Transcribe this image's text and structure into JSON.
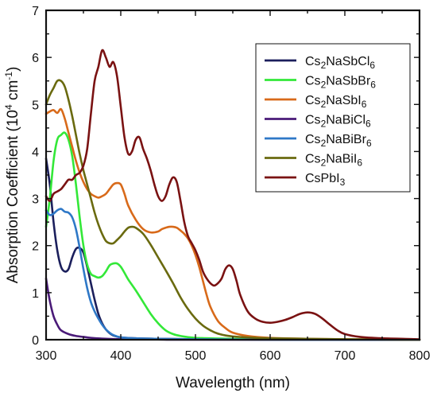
{
  "chart_data": {
    "type": "line",
    "xlabel": "Wavelength (nm)",
    "ylabel_main": "Absorption Coefficient (10",
    "ylabel_sup1": "4",
    "ylabel_mid": " cm",
    "ylabel_sup2": "-1",
    "ylabel_end": ")",
    "xlim": [
      300,
      800
    ],
    "ylim": [
      0,
      7
    ],
    "xticks": [
      "300",
      "400",
      "500",
      "600",
      "700",
      "800"
    ],
    "yticks": [
      "0",
      "1",
      "2",
      "3",
      "4",
      "5",
      "6",
      "7"
    ],
    "grid": false,
    "legend_position": "top-right",
    "series": [
      {
        "name": "Cs2NaSbCl6",
        "label_parts": [
          [
            "Cs",
            ""
          ],
          [
            "2",
            "sub"
          ],
          [
            "NaSbCl",
            ""
          ],
          [
            "6",
            "sub"
          ]
        ],
        "color": "#1b1f5c",
        "points": [
          [
            300,
            3.85
          ],
          [
            305,
            3.3
          ],
          [
            310,
            2.5
          ],
          [
            315,
            1.9
          ],
          [
            320,
            1.55
          ],
          [
            325,
            1.45
          ],
          [
            330,
            1.5
          ],
          [
            335,
            1.75
          ],
          [
            340,
            1.93
          ],
          [
            345,
            1.95
          ],
          [
            350,
            1.85
          ],
          [
            355,
            1.55
          ],
          [
            360,
            1.2
          ],
          [
            365,
            0.85
          ],
          [
            370,
            0.55
          ],
          [
            375,
            0.35
          ],
          [
            380,
            0.22
          ],
          [
            385,
            0.14
          ],
          [
            390,
            0.09
          ],
          [
            400,
            0.05
          ],
          [
            420,
            0.03
          ],
          [
            450,
            0.02
          ],
          [
            500,
            0.01
          ],
          [
            600,
            0.01
          ],
          [
            700,
            0.0
          ],
          [
            800,
            0.0
          ]
        ]
      },
      {
        "name": "Cs2NaSbBr6",
        "label_parts": [
          [
            "Cs",
            ""
          ],
          [
            "2",
            "sub"
          ],
          [
            "NaSbBr",
            ""
          ],
          [
            "6",
            "sub"
          ]
        ],
        "color": "#33e838",
        "points": [
          [
            300,
            2.4
          ],
          [
            305,
            3.0
          ],
          [
            310,
            3.8
          ],
          [
            315,
            4.25
          ],
          [
            320,
            4.35
          ],
          [
            325,
            4.4
          ],
          [
            330,
            4.25
          ],
          [
            335,
            3.9
          ],
          [
            340,
            3.3
          ],
          [
            345,
            2.6
          ],
          [
            350,
            2.0
          ],
          [
            355,
            1.6
          ],
          [
            360,
            1.4
          ],
          [
            365,
            1.35
          ],
          [
            370,
            1.32
          ],
          [
            375,
            1.35
          ],
          [
            380,
            1.45
          ],
          [
            385,
            1.58
          ],
          [
            390,
            1.62
          ],
          [
            395,
            1.62
          ],
          [
            400,
            1.55
          ],
          [
            405,
            1.42
          ],
          [
            410,
            1.28
          ],
          [
            420,
            1.05
          ],
          [
            430,
            0.8
          ],
          [
            440,
            0.55
          ],
          [
            450,
            0.35
          ],
          [
            460,
            0.2
          ],
          [
            470,
            0.12
          ],
          [
            480,
            0.08
          ],
          [
            500,
            0.04
          ],
          [
            550,
            0.02
          ],
          [
            600,
            0.01
          ],
          [
            800,
            0.0
          ]
        ]
      },
      {
        "name": "Cs2NaSbI6",
        "label_parts": [
          [
            "Cs",
            ""
          ],
          [
            "2",
            "sub"
          ],
          [
            "NaSbI",
            ""
          ],
          [
            "6",
            "sub"
          ]
        ],
        "color": "#d86a1a",
        "points": [
          [
            300,
            4.8
          ],
          [
            305,
            4.85
          ],
          [
            310,
            4.88
          ],
          [
            315,
            4.82
          ],
          [
            320,
            4.9
          ],
          [
            325,
            4.7
          ],
          [
            330,
            4.4
          ],
          [
            335,
            4.1
          ],
          [
            340,
            3.8
          ],
          [
            345,
            3.55
          ],
          [
            350,
            3.35
          ],
          [
            355,
            3.2
          ],
          [
            360,
            3.1
          ],
          [
            365,
            3.05
          ],
          [
            370,
            3.02
          ],
          [
            375,
            3.05
          ],
          [
            380,
            3.1
          ],
          [
            385,
            3.2
          ],
          [
            390,
            3.3
          ],
          [
            395,
            3.33
          ],
          [
            400,
            3.3
          ],
          [
            405,
            3.1
          ],
          [
            410,
            2.85
          ],
          [
            420,
            2.55
          ],
          [
            430,
            2.35
          ],
          [
            440,
            2.28
          ],
          [
            450,
            2.3
          ],
          [
            455,
            2.35
          ],
          [
            460,
            2.38
          ],
          [
            465,
            2.4
          ],
          [
            470,
            2.4
          ],
          [
            475,
            2.38
          ],
          [
            480,
            2.32
          ],
          [
            485,
            2.25
          ],
          [
            490,
            2.15
          ],
          [
            495,
            2.0
          ],
          [
            500,
            1.8
          ],
          [
            505,
            1.55
          ],
          [
            510,
            1.25
          ],
          [
            515,
            0.95
          ],
          [
            520,
            0.7
          ],
          [
            530,
            0.4
          ],
          [
            540,
            0.25
          ],
          [
            550,
            0.15
          ],
          [
            570,
            0.08
          ],
          [
            600,
            0.04
          ],
          [
            650,
            0.02
          ],
          [
            700,
            0.01
          ],
          [
            800,
            0.0
          ]
        ]
      },
      {
        "name": "Cs2NaBiCl6",
        "label_parts": [
          [
            "Cs",
            ""
          ],
          [
            "2",
            "sub"
          ],
          [
            "NaBiCl",
            ""
          ],
          [
            "6",
            "sub"
          ]
        ],
        "color": "#4a1a78",
        "points": [
          [
            300,
            1.3
          ],
          [
            303,
            1.0
          ],
          [
            306,
            0.75
          ],
          [
            310,
            0.5
          ],
          [
            315,
            0.32
          ],
          [
            320,
            0.2
          ],
          [
            330,
            0.12
          ],
          [
            340,
            0.08
          ],
          [
            350,
            0.06
          ],
          [
            360,
            0.04
          ],
          [
            380,
            0.02
          ],
          [
            400,
            0.01
          ],
          [
            450,
            0.005
          ],
          [
            500,
            0.0
          ],
          [
            800,
            0.0
          ]
        ]
      },
      {
        "name": "Cs2NaBiBr6",
        "label_parts": [
          [
            "Cs",
            ""
          ],
          [
            "2",
            "sub"
          ],
          [
            "NaBiBr",
            ""
          ],
          [
            "6",
            "sub"
          ]
        ],
        "color": "#2e78c7",
        "points": [
          [
            300,
            2.75
          ],
          [
            305,
            2.65
          ],
          [
            310,
            2.68
          ],
          [
            315,
            2.75
          ],
          [
            320,
            2.78
          ],
          [
            325,
            2.72
          ],
          [
            330,
            2.7
          ],
          [
            335,
            2.6
          ],
          [
            340,
            2.35
          ],
          [
            345,
            1.95
          ],
          [
            350,
            1.5
          ],
          [
            355,
            1.1
          ],
          [
            360,
            0.8
          ],
          [
            365,
            0.6
          ],
          [
            370,
            0.45
          ],
          [
            375,
            0.32
          ],
          [
            380,
            0.22
          ],
          [
            385,
            0.15
          ],
          [
            390,
            0.1
          ],
          [
            400,
            0.05
          ],
          [
            420,
            0.03
          ],
          [
            450,
            0.02
          ],
          [
            500,
            0.01
          ],
          [
            600,
            0.0
          ],
          [
            800,
            0.0
          ]
        ]
      },
      {
        "name": "Cs2NaBiI6",
        "label_parts": [
          [
            "Cs",
            ""
          ],
          [
            "2",
            "sub"
          ],
          [
            "NaBiI",
            ""
          ],
          [
            "6",
            "sub"
          ]
        ],
        "color": "#6a6a0f",
        "points": [
          [
            300,
            5.0
          ],
          [
            305,
            5.2
          ],
          [
            310,
            5.35
          ],
          [
            315,
            5.5
          ],
          [
            320,
            5.5
          ],
          [
            325,
            5.38
          ],
          [
            330,
            5.1
          ],
          [
            335,
            4.75
          ],
          [
            340,
            4.35
          ],
          [
            345,
            3.95
          ],
          [
            350,
            3.6
          ],
          [
            355,
            3.3
          ],
          [
            360,
            3.0
          ],
          [
            365,
            2.7
          ],
          [
            370,
            2.45
          ],
          [
            375,
            2.25
          ],
          [
            380,
            2.1
          ],
          [
            385,
            2.05
          ],
          [
            390,
            2.05
          ],
          [
            395,
            2.12
          ],
          [
            400,
            2.2
          ],
          [
            405,
            2.3
          ],
          [
            410,
            2.38
          ],
          [
            415,
            2.4
          ],
          [
            420,
            2.38
          ],
          [
            430,
            2.25
          ],
          [
            440,
            2.02
          ],
          [
            450,
            1.75
          ],
          [
            460,
            1.48
          ],
          [
            470,
            1.2
          ],
          [
            480,
            0.9
          ],
          [
            490,
            0.65
          ],
          [
            500,
            0.45
          ],
          [
            510,
            0.3
          ],
          [
            520,
            0.2
          ],
          [
            530,
            0.13
          ],
          [
            550,
            0.07
          ],
          [
            600,
            0.03
          ],
          [
            700,
            0.01
          ],
          [
            800,
            0.0
          ]
        ]
      },
      {
        "name": "CsPbI3",
        "label_parts": [
          [
            "CsPbI",
            ""
          ],
          [
            "3",
            "sub"
          ]
        ],
        "color": "#7a1212",
        "points": [
          [
            300,
            3.05
          ],
          [
            305,
            2.95
          ],
          [
            310,
            3.1
          ],
          [
            315,
            3.15
          ],
          [
            320,
            3.2
          ],
          [
            325,
            3.3
          ],
          [
            330,
            3.4
          ],
          [
            335,
            3.4
          ],
          [
            340,
            3.5
          ],
          [
            345,
            3.55
          ],
          [
            350,
            3.7
          ],
          [
            355,
            4.05
          ],
          [
            360,
            4.8
          ],
          [
            365,
            5.5
          ],
          [
            370,
            5.8
          ],
          [
            375,
            6.15
          ],
          [
            380,
            6.0
          ],
          [
            385,
            5.8
          ],
          [
            390,
            5.9
          ],
          [
            395,
            5.6
          ],
          [
            400,
            4.95
          ],
          [
            405,
            4.3
          ],
          [
            410,
            3.95
          ],
          [
            415,
            4.0
          ],
          [
            420,
            4.25
          ],
          [
            425,
            4.3
          ],
          [
            430,
            4.05
          ],
          [
            435,
            3.85
          ],
          [
            440,
            3.6
          ],
          [
            445,
            3.3
          ],
          [
            450,
            3.05
          ],
          [
            455,
            2.95
          ],
          [
            460,
            3.05
          ],
          [
            465,
            3.3
          ],
          [
            470,
            3.45
          ],
          [
            475,
            3.35
          ],
          [
            480,
            2.95
          ],
          [
            485,
            2.5
          ],
          [
            490,
            2.2
          ],
          [
            495,
            2.05
          ],
          [
            500,
            1.9
          ],
          [
            505,
            1.7
          ],
          [
            510,
            1.45
          ],
          [
            515,
            1.3
          ],
          [
            520,
            1.2
          ],
          [
            525,
            1.15
          ],
          [
            530,
            1.2
          ],
          [
            535,
            1.3
          ],
          [
            540,
            1.5
          ],
          [
            545,
            1.58
          ],
          [
            550,
            1.5
          ],
          [
            555,
            1.25
          ],
          [
            560,
            0.95
          ],
          [
            570,
            0.6
          ],
          [
            580,
            0.45
          ],
          [
            590,
            0.38
          ],
          [
            600,
            0.36
          ],
          [
            610,
            0.38
          ],
          [
            620,
            0.42
          ],
          [
            630,
            0.48
          ],
          [
            640,
            0.55
          ],
          [
            650,
            0.58
          ],
          [
            660,
            0.55
          ],
          [
            670,
            0.45
          ],
          [
            680,
            0.32
          ],
          [
            690,
            0.2
          ],
          [
            700,
            0.12
          ],
          [
            720,
            0.06
          ],
          [
            750,
            0.03
          ],
          [
            800,
            0.01
          ]
        ]
      }
    ]
  }
}
